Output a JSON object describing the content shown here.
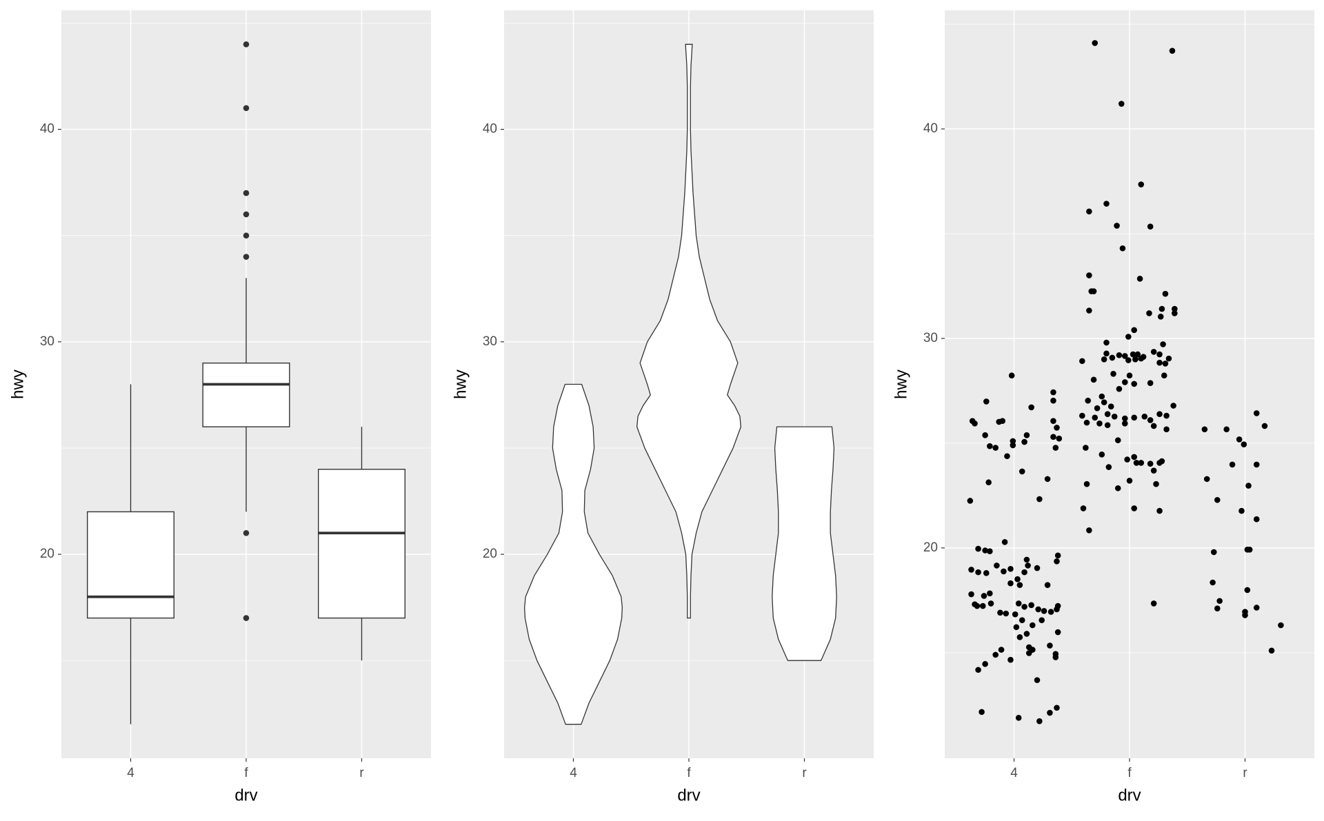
{
  "chart_data": [
    {
      "type": "box",
      "xlabel": "drv",
      "ylabel": "hwy",
      "categories": [
        "4",
        "f",
        "r"
      ],
      "ylim": [
        10.4,
        45.6
      ],
      "yticks": [
        20,
        30,
        40
      ],
      "minor_yticks": [
        15,
        25,
        35,
        45
      ],
      "outlier_color": "#333333",
      "boxes": [
        {
          "whisker_low": 12,
          "q1": 17,
          "median": 18,
          "q3": 22,
          "whisker_high": 28,
          "outliers": []
        },
        {
          "whisker_low": 22,
          "q1": 26,
          "median": 28,
          "q3": 29,
          "whisker_high": 33,
          "outliers": [
            44,
            41,
            37,
            36,
            35,
            34,
            21,
            17
          ]
        },
        {
          "whisker_low": 15,
          "q1": 17,
          "median": 21,
          "q3": 24,
          "whisker_high": 26,
          "outliers": []
        }
      ]
    },
    {
      "type": "violin",
      "xlabel": "drv",
      "ylabel": "hwy",
      "categories": [
        "4",
        "f",
        "r"
      ],
      "ylim": [
        10.4,
        45.6
      ],
      "yticks": [
        20,
        30,
        40
      ],
      "minor_yticks": [
        15,
        25,
        35,
        45
      ],
      "violins": [
        {
          "y": [
            12,
            13,
            14,
            15,
            16,
            17,
            17.5,
            18,
            19,
            20,
            21,
            22,
            23,
            24,
            25,
            26,
            27,
            28
          ],
          "width": [
            0.15,
            0.3,
            0.5,
            0.7,
            0.85,
            0.93,
            0.94,
            0.92,
            0.75,
            0.5,
            0.28,
            0.21,
            0.22,
            0.33,
            0.4,
            0.38,
            0.3,
            0.16
          ]
        },
        {
          "y": [
            17,
            18,
            19,
            20,
            21,
            22,
            23,
            24,
            25,
            26,
            26.5,
            27,
            27.5,
            28,
            29,
            30,
            31,
            32,
            33,
            34,
            35,
            36,
            37,
            38,
            39,
            40,
            41,
            42,
            43,
            44
          ],
          "width": [
            0.03,
            0.03,
            0.04,
            0.06,
            0.14,
            0.25,
            0.45,
            0.65,
            0.85,
            1.0,
            0.98,
            0.88,
            0.74,
            0.8,
            0.94,
            0.8,
            0.55,
            0.4,
            0.3,
            0.2,
            0.14,
            0.11,
            0.08,
            0.06,
            0.04,
            0.03,
            0.03,
            0.03,
            0.04,
            0.065
          ]
        },
        {
          "y": [
            15,
            16,
            17,
            18,
            19,
            20,
            21,
            22,
            23,
            24,
            25,
            26
          ],
          "width": [
            0.32,
            0.5,
            0.6,
            0.62,
            0.6,
            0.55,
            0.5,
            0.5,
            0.52,
            0.55,
            0.57,
            0.53
          ]
        }
      ]
    },
    {
      "type": "scatter",
      "xlabel": "drv",
      "ylabel": "hwy",
      "color": "#000000",
      "xlim": [
        0.4,
        3.6
      ],
      "xticks": [
        {
          "value": 1,
          "label": "4"
        },
        {
          "value": 2,
          "label": "f"
        },
        {
          "value": 3,
          "label": "r"
        }
      ],
      "ylim": [
        9.96,
        45.66
      ],
      "yticks": [
        20,
        30,
        40
      ],
      "minor_yticks": [
        15,
        25,
        35,
        45
      ],
      "x": [
        0.98,
        0.76,
        0.64,
        0.66,
        0.87,
        1.15,
        1.34,
        0.75,
        0.9,
        1.11,
        1.09,
        0.99,
        0.79,
        0.84,
        0.94,
        0.99,
        1.34,
        1.34,
        1.37,
        1.34,
        1.39,
        1.36,
        1.07,
        0.78,
        1.29,
        1.22,
        0.62,
        0.92,
        0.69,
        0.75,
        0.79,
        1.38,
        0.63,
        0.69,
        0.85,
        1.11,
        1.12,
        1.09,
        0.91,
        0.97,
        0.76,
        1.03,
        1.2,
        1.37,
        0.63,
        0.74,
        0.79,
        0.97,
        1.05,
        1.29,
        0.73,
        0.8,
        0.68,
        0.66,
        0.88,
        0.93,
        1.04,
        1.09,
        1.15,
        1.21,
        1.26,
        1.32,
        1.37,
        1.38,
        1.01,
        1.07,
        1.02,
        1.16,
        1.24,
        1.38,
        1.11,
        1.05,
        1.13,
        1.16,
        1.31,
        1.36,
        1.36,
        0.89,
        0.84,
        0.75,
        0.97,
        0.69,
        1.2,
        0.72,
        1.04,
        1.22,
        1.31,
        1.37,
        1.13,
        1.7,
        2.37,
        1.93,
        2.1,
        1.65,
        1.8,
        1.89,
        2.18,
        1.94,
        1.65,
        1.67,
        1.69,
        2.09,
        2.31,
        1.65,
        2.17,
        2.28,
        2.39,
        2.39,
        2.27,
        2.04,
        1.8,
        1.99,
        1.8,
        1.91,
        1.96,
        2.03,
        2.07,
        2.12,
        2.26,
        2.34,
        2.29,
        1.59,
        1.78,
        1.85,
        1.99,
        2.05,
        2.1,
        2.26,
        2.31,
        2.21,
        1.86,
        1.69,
        1.96,
        2.0,
        2.3,
        2.04,
        2.18,
        1.91,
        1.76,
        1.78,
        1.64,
        1.72,
        1.59,
        1.7,
        1.81,
        1.84,
        2.38,
        1.87,
        1.96,
        2.13,
        1.63,
        1.74,
        1.81,
        1.96,
        2.04,
        2.18,
        2.26,
        2.32,
        2.21,
        2.32,
        1.9,
        1.62,
        1.98,
        2.04,
        2.06,
        2.1,
        2.26,
        2.28,
        2.18,
        2.21,
        1.82,
        1.76,
        1.63,
        1.9,
        2.0,
        2.23,
        1.6,
        2.04,
        2.26,
        1.65,
        2.21,
        2.65,
        2.84,
        3.1,
        3.17,
        2.95,
        2.99,
        2.89,
        3.1,
        2.67,
        3.03,
        2.76,
        2.97,
        3.1,
        3.02,
        3.04,
        2.73,
        2.72,
        2.78,
        2.76,
        3.02,
        3.0,
        3.0,
        3.1,
        3.31,
        3.23
      ],
      "y": [
        28.23,
        26.99,
        26.06,
        25.94,
        26.02,
        26.71,
        27.43,
        25.38,
        26.06,
        25.38,
        25.06,
        25.1,
        24.86,
        24.78,
        24.38,
        24.9,
        27.03,
        26.06,
        25.74,
        25.3,
        25.22,
        24.78,
        23.65,
        23.13,
        23.29,
        22.33,
        22.25,
        20.28,
        19.96,
        19.88,
        19.84,
        19.64,
        18.96,
        18.84,
        19.16,
        19.44,
        19.16,
        18.84,
        18.88,
        19.0,
        18.8,
        18.51,
        19.04,
        19.36,
        17.79,
        17.71,
        17.83,
        18.31,
        18.23,
        18.23,
        17.23,
        17.35,
        17.23,
        17.31,
        16.91,
        16.87,
        17.35,
        17.19,
        17.27,
        17.07,
        16.99,
        16.95,
        17.07,
        17.23,
        16.83,
        16.55,
        16.22,
        16.31,
        16.55,
        15.98,
        15.9,
        15.74,
        15.26,
        15.14,
        15.34,
        14.78,
        14.94,
        15.14,
        14.9,
        14.46,
        14.66,
        14.18,
        13.69,
        12.17,
        11.89,
        11.73,
        12.13,
        12.37,
        14.98,
        44.1,
        43.73,
        41.2,
        37.35,
        36.06,
        36.43,
        35.38,
        35.34,
        34.3,
        33.01,
        32.25,
        32.25,
        32.85,
        32.13,
        31.33,
        31.2,
        31.41,
        31.41,
        31.2,
        31.04,
        30.4,
        29.8,
        30.08,
        29.28,
        29.2,
        29.16,
        29.24,
        29.24,
        29.12,
        29.24,
        29.04,
        29.72,
        28.92,
        29.0,
        29.08,
        28.96,
        29.0,
        29.04,
        28.84,
        28.8,
        29.36,
        28.31,
        28.03,
        27.91,
        28.23,
        28.23,
        27.83,
        27.87,
        27.59,
        27.23,
        26.95,
        27.03,
        26.67,
        26.31,
        26.22,
        26.39,
        26.75,
        26.79,
        26.27,
        26.18,
        26.27,
        25.98,
        25.94,
        25.86,
        25.94,
        26.22,
        26.1,
        26.39,
        26.31,
        25.82,
        25.66,
        25.14,
        24.78,
        24.22,
        24.34,
        24.06,
        24.06,
        24.06,
        24.14,
        24.02,
        23.69,
        23.86,
        24.46,
        23.05,
        22.85,
        23.21,
        23.05,
        21.89,
        21.89,
        21.77,
        20.84,
        17.35,
        25.66,
        25.66,
        26.43,
        25.82,
        25.18,
        24.94,
        23.98,
        23.98,
        23.29,
        22.97,
        22.29,
        21.77,
        21.37,
        19.92,
        19.92,
        19.8,
        18.35,
        17.47,
        17.11,
        17.99,
        16.95,
        16.79,
        17.15,
        16.31,
        15.1
      ]
    }
  ]
}
